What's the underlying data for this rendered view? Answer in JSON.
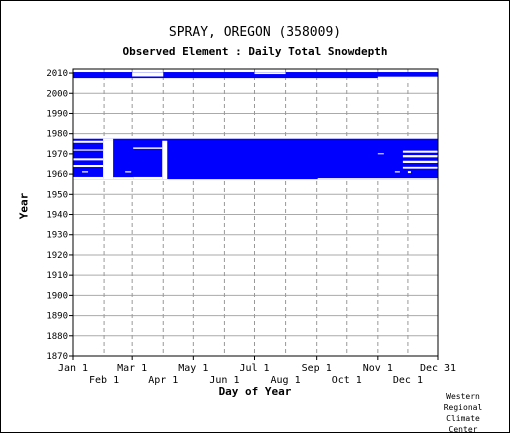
{
  "chart_data": {
    "type": "heatmap",
    "title": "SPRAY, OREGON   (358009)",
    "subtitle": "Observed Element : Daily Total Snowdepth",
    "xlabel": "Day of Year",
    "ylabel": "Year",
    "xlim": [
      1,
      365
    ],
    "ylim": [
      1870,
      2011
    ],
    "x_ticks_top": [
      {
        "label": "Jan 1",
        "day": 1
      },
      {
        "label": "Mar 1",
        "day": 60
      },
      {
        "label": "May 1",
        "day": 121
      },
      {
        "label": "Jul 1",
        "day": 182
      },
      {
        "label": "Sep 1",
        "day": 244
      },
      {
        "label": "Nov 1",
        "day": 305
      },
      {
        "label": "Dec 31",
        "day": 365
      }
    ],
    "x_ticks_bottom": [
      {
        "label": "Feb 1",
        "day": 32
      },
      {
        "label": "Apr 1",
        "day": 91
      },
      {
        "label": "Jun 1",
        "day": 152
      },
      {
        "label": "Aug 1",
        "day": 213
      },
      {
        "label": "Oct 1",
        "day": 274
      },
      {
        "label": "Dec 1",
        "day": 335
      }
    ],
    "y_ticks": [
      1870,
      1880,
      1890,
      1900,
      1910,
      1920,
      1930,
      1940,
      1950,
      1960,
      1970,
      1980,
      1990,
      2000,
      2010
    ],
    "grid": true,
    "data_color": "#0000ff",
    "coverage_blocks": [
      {
        "day_start": 1,
        "day_end": 365,
        "year_start": 1958,
        "year_end": 1977
      },
      {
        "day_start": 1,
        "day_end": 365,
        "year_start": 2008,
        "year_end": 2010
      }
    ],
    "gaps": [
      {
        "day_start": 1,
        "day_end": 31,
        "year_start": 1975.5,
        "year_end": 1976.5
      },
      {
        "day_start": 1,
        "day_end": 31,
        "year_start": 1971.6,
        "year_end": 1972.2
      },
      {
        "day_start": 1,
        "day_end": 31,
        "year_start": 1966.8,
        "year_end": 1967.8
      },
      {
        "day_start": 1,
        "day_end": 31,
        "year_start": 1963.5,
        "year_end": 1964.5
      },
      {
        "day_start": 1,
        "day_end": 31,
        "year_start": 1957.5,
        "year_end": 1958.6
      },
      {
        "day_start": 10,
        "day_end": 16,
        "year_start": 1960.8,
        "year_end": 1961.4
      },
      {
        "day_start": 31,
        "day_end": 41,
        "year_start": 1976.7,
        "year_end": 1977.5
      },
      {
        "day_start": 31,
        "day_end": 41,
        "year_start": 1957.5,
        "year_end": 1976.8
      },
      {
        "day_start": 53,
        "day_end": 59,
        "year_start": 1960.8,
        "year_end": 1961.4
      },
      {
        "day_start": 41,
        "day_end": 61,
        "year_start": 1957.5,
        "year_end": 1958.5
      },
      {
        "day_start": 61,
        "day_end": 90,
        "year_start": 1972.5,
        "year_end": 1973.2
      },
      {
        "day_start": 61,
        "day_end": 90,
        "year_start": 1957.5,
        "year_end": 1958.6
      },
      {
        "day_start": 90,
        "day_end": 95,
        "year_start": 1957.5,
        "year_end": 1976.5
      },
      {
        "day_start": 245,
        "day_end": 365,
        "year_start": 1957.5,
        "year_end": 1958
      },
      {
        "day_start": 305,
        "day_end": 311,
        "year_start": 1969.8,
        "year_end": 1970.3
      },
      {
        "day_start": 330,
        "day_end": 365,
        "year_start": 1970.6,
        "year_end": 1971.6
      },
      {
        "day_start": 330,
        "day_end": 365,
        "year_start": 1968.3,
        "year_end": 1969.4
      },
      {
        "day_start": 330,
        "day_end": 365,
        "year_start": 1965.5,
        "year_end": 1966.6
      },
      {
        "day_start": 330,
        "day_end": 365,
        "year_start": 1962.7,
        "year_end": 1963.6
      },
      {
        "day_start": 322,
        "day_end": 327,
        "year_start": 1960.8,
        "year_end": 1961.4
      },
      {
        "day_start": 335,
        "day_end": 338,
        "year_start": 1960.5,
        "year_end": 1961.5
      },
      {
        "day_start": 60,
        "day_end": 91,
        "year_start": 2008.3,
        "year_end": 2010.4
      },
      {
        "day_start": 182,
        "day_end": 213,
        "year_start": 2009.5,
        "year_end": 2010.4
      },
      {
        "day_start": 305,
        "day_end": 365,
        "year_start": 2006.7,
        "year_end": 2008.2
      }
    ]
  },
  "credit": {
    "lines": [
      "Western",
      "Regional",
      "Climate",
      "Center"
    ]
  }
}
